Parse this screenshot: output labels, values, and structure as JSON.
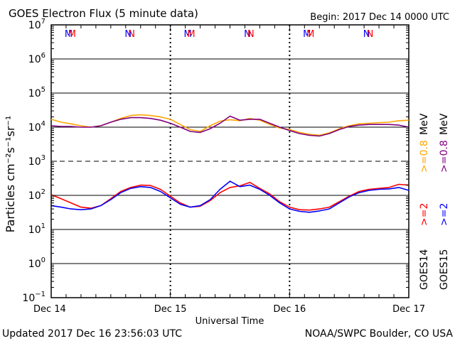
{
  "chart_data": {
    "type": "line",
    "title": "GOES Electron Flux (5 minute data)",
    "begin_label": "Begin: 2017 Dec 14 0000 UTC",
    "xlabel": "Universal Time",
    "ylabel": "Particles cm⁻²s⁻¹sr⁻¹",
    "yscale": "log",
    "ylim": [
      0.1,
      10000000
    ],
    "y_ticks": [
      {
        "base": "10",
        "exp": "7"
      },
      {
        "base": "10",
        "exp": "6"
      },
      {
        "base": "10",
        "exp": "5"
      },
      {
        "base": "10",
        "exp": "4"
      },
      {
        "base": "10",
        "exp": "3"
      },
      {
        "base": "10",
        "exp": "2"
      },
      {
        "base": "10",
        "exp": "1"
      },
      {
        "base": "10",
        "exp": "0"
      },
      {
        "base": "10",
        "exp": "−1"
      }
    ],
    "xlim": [
      0,
      72
    ],
    "x_unit": "hours since 2017 Dec 14 0000 UTC",
    "x_tick_labels": [
      "Dec 14",
      "Dec 15",
      "Dec 16",
      "Dec 17"
    ],
    "grid_dashed_at": 1000,
    "mn_markers": [
      {
        "hour": 3.5,
        "label": "M",
        "sat": "GOES15"
      },
      {
        "hour": 4.2,
        "label": "M",
        "sat": "GOES14"
      },
      {
        "hour": 15.5,
        "label": "N",
        "sat": "GOES15"
      },
      {
        "hour": 16.2,
        "label": "N",
        "sat": "GOES14"
      },
      {
        "hour": 27.5,
        "label": "M",
        "sat": "GOES15"
      },
      {
        "hour": 28.2,
        "label": "M",
        "sat": "GOES14"
      },
      {
        "hour": 39.5,
        "label": "N",
        "sat": "GOES15"
      },
      {
        "hour": 40.2,
        "label": "N",
        "sat": "GOES14"
      },
      {
        "hour": 51.5,
        "label": "M",
        "sat": "GOES15"
      },
      {
        "hour": 52.2,
        "label": "M",
        "sat": "GOES14"
      },
      {
        "hour": 63.5,
        "label": "N",
        "sat": "GOES15"
      },
      {
        "hour": 64.2,
        "label": "N",
        "sat": "GOES14"
      }
    ],
    "series": [
      {
        "name": "GOES14 >=0.8 MeV",
        "color": "#FFA500",
        "x": [
          0,
          2,
          4,
          6,
          8,
          10,
          12,
          14,
          16,
          18,
          20,
          22,
          24,
          26,
          28,
          30,
          32,
          34,
          36,
          38,
          40,
          42,
          44,
          46,
          48,
          50,
          52,
          54,
          56,
          58,
          60,
          62,
          64,
          66,
          68,
          70,
          72
        ],
        "y": [
          17000,
          14000,
          12500,
          11000,
          10000,
          11000,
          14000,
          18000,
          22000,
          23000,
          22000,
          20000,
          17000,
          12000,
          8500,
          7500,
          11000,
          15000,
          16500,
          15500,
          18000,
          16000,
          12000,
          9500,
          8500,
          7000,
          6200,
          5800,
          6800,
          9000,
          11000,
          12500,
          13000,
          13500,
          14000,
          15500,
          16000
        ]
      },
      {
        "name": "GOES15 >=0.8 MeV",
        "color": "#800080",
        "x": [
          0,
          2,
          4,
          6,
          8,
          10,
          12,
          14,
          16,
          18,
          20,
          22,
          24,
          26,
          28,
          30,
          32,
          34,
          36,
          38,
          40,
          42,
          44,
          46,
          48,
          50,
          52,
          54,
          56,
          58,
          60,
          62,
          64,
          66,
          68,
          70,
          72
        ],
        "y": [
          11000,
          10500,
          10500,
          10000,
          10000,
          11000,
          14000,
          17000,
          19000,
          19000,
          18000,
          16000,
          13000,
          10000,
          7500,
          7000,
          9000,
          13000,
          21000,
          16000,
          17000,
          17000,
          13000,
          10000,
          8000,
          6500,
          5800,
          5500,
          6500,
          8500,
          10500,
          11500,
          12000,
          12000,
          12000,
          11500,
          10000
        ]
      },
      {
        "name": "GOES14 >=2 MeV",
        "color": "#FF0000",
        "x": [
          0,
          2,
          4,
          6,
          8,
          10,
          12,
          14,
          16,
          18,
          20,
          22,
          24,
          26,
          28,
          30,
          32,
          34,
          36,
          38,
          40,
          42,
          44,
          46,
          48,
          50,
          52,
          54,
          56,
          58,
          60,
          62,
          64,
          66,
          68,
          70,
          72
        ],
        "y": [
          105,
          80,
          60,
          45,
          42,
          50,
          80,
          130,
          170,
          200,
          195,
          150,
          95,
          60,
          45,
          48,
          70,
          120,
          170,
          190,
          240,
          160,
          110,
          65,
          45,
          38,
          37,
          40,
          45,
          65,
          95,
          130,
          150,
          160,
          170,
          210,
          200
        ]
      },
      {
        "name": "GOES15 >=2 MeV",
        "color": "#0000FF",
        "x": [
          0,
          2,
          4,
          6,
          8,
          10,
          12,
          14,
          16,
          18,
          20,
          22,
          24,
          26,
          28,
          30,
          32,
          34,
          36,
          38,
          40,
          42,
          44,
          46,
          48,
          50,
          52,
          54,
          56,
          58,
          60,
          62,
          64,
          66,
          68,
          70,
          72
        ],
        "y": [
          50,
          45,
          40,
          38,
          40,
          50,
          75,
          120,
          160,
          180,
          170,
          130,
          85,
          55,
          45,
          50,
          75,
          150,
          260,
          180,
          200,
          150,
          100,
          60,
          40,
          34,
          32,
          35,
          40,
          60,
          90,
          120,
          140,
          150,
          155,
          170,
          140
        ]
      }
    ],
    "legend": {
      "placement": "right (vertical)",
      "energy_0_8": "MeV",
      "goes14_08": ">=0.8",
      "goes15_08": ">=0.8",
      "goes14_2": ">=2",
      "goes15_2": ">=2",
      "goes14": "GOES14",
      "goes15": "GOES15"
    }
  },
  "footer": {
    "updated": "Updated 2017 Dec 16 23:56:03 UTC",
    "credit": "NOAA/SWPC Boulder, CO USA"
  }
}
